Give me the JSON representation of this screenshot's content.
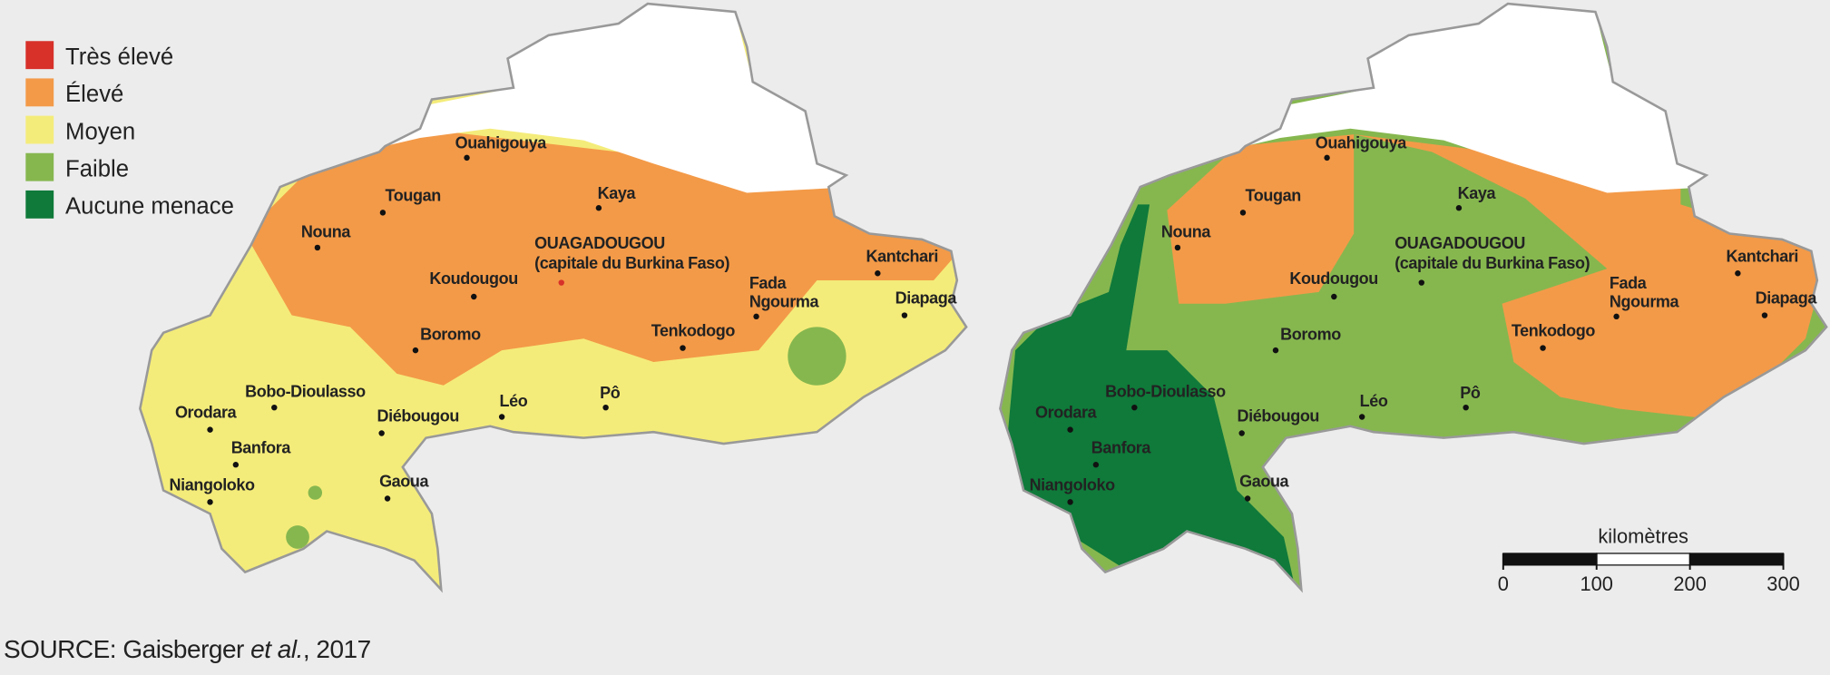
{
  "legend": {
    "items": [
      {
        "label": "Très élevé",
        "color": "#d7312a"
      },
      {
        "label": "Élevé",
        "color": "#f39a48"
      },
      {
        "label": "Moyen",
        "color": "#f4ec7a"
      },
      {
        "label": "Faible",
        "color": "#86b74f"
      },
      {
        "label": "Aucune menace",
        "color": "#0f7a3a"
      }
    ]
  },
  "maps": [
    {
      "cities": [
        "Ouahigouya",
        "Tougan",
        "Kaya",
        "Nouna",
        "OUAGADOUGOU",
        "(capitale du Burkina Faso)",
        "Kantchari",
        "Koudougou",
        "Fada",
        "Ngourma",
        "Diapaga",
        "Boromo",
        "Tenkodogo",
        "Bobo-Dioulasso",
        "Orodara",
        "Diébougou",
        "Léo",
        "Pô",
        "Banfora",
        "Niangoloko",
        "Gaoua"
      ]
    },
    {
      "cities": [
        "Ouahigouya",
        "Tougan",
        "Kaya",
        "Nouna",
        "OUAGADOUGOU",
        "(capitale du Burkina Faso)",
        "Kantchari",
        "Koudougou",
        "Fada",
        "Ngourma",
        "Diapaga",
        "Boromo",
        "Tenkodogo",
        "Bobo-Dioulasso",
        "Orodara",
        "Diébougou",
        "Léo",
        "Pô",
        "Banfora",
        "Niangoloko",
        "Gaoua"
      ]
    }
  ],
  "scale": {
    "label": "kilomètres",
    "ticks": [
      0,
      100,
      200,
      300
    ]
  },
  "source": {
    "prefix": "SOURCE: Gaisberger ",
    "emphasis": "et al.",
    "suffix": ", 2017"
  }
}
